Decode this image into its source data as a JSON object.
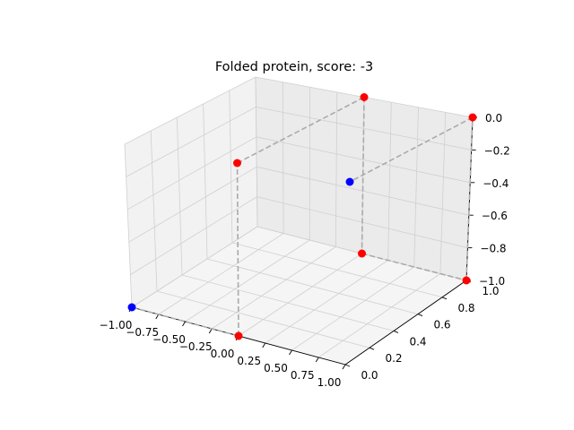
{
  "chart_data": {
    "type": "scatter",
    "projection": "3d",
    "title": "Folded protein, score: -3",
    "xlabel": "",
    "ylabel": "",
    "zlabel": "",
    "xlim": [
      -1.0,
      1.0
    ],
    "ylim": [
      0.0,
      1.0
    ],
    "zlim": [
      -1.0,
      0.0
    ],
    "x_ticks": [
      "−1.00",
      "−0.75",
      "−0.50",
      "−0.25",
      "0.00",
      "0.25",
      "0.50",
      "0.75",
      "1.00"
    ],
    "y_ticks": [
      "0.0",
      "0.2",
      "0.4",
      "0.6",
      "0.8",
      "1.0"
    ],
    "z_ticks": [
      "0.0",
      "−0.2",
      "−0.4",
      "−0.6",
      "−0.8",
      "−1.0"
    ],
    "grid": true,
    "connector_style": "dashed",
    "colors": {
      "hydrophobic": "#0000ff",
      "polar": "#ff0000",
      "connector": "#aaaaaa",
      "pane_left": "#f2f2f2",
      "pane_right": "#ebebeb",
      "pane_floor": "#f5f5f5",
      "grid": "#d0d0d0"
    },
    "points": [
      {
        "x": -1,
        "y": 0,
        "z": -1,
        "color": "#0000ff"
      },
      {
        "x": 0,
        "y": 0,
        "z": -1,
        "color": "#ff0000"
      },
      {
        "x": 0,
        "y": 0,
        "z": 0,
        "color": "#ff0000"
      },
      {
        "x": 0,
        "y": 1,
        "z": 0,
        "color": "#ff0000"
      },
      {
        "x": 0,
        "y": 1,
        "z": -1,
        "color": "#ff0000"
      },
      {
        "x": 1,
        "y": 1,
        "z": -1,
        "color": "#ff0000"
      },
      {
        "x": 1,
        "y": 1,
        "z": 0,
        "color": "#ff0000"
      },
      {
        "x": 1,
        "y": 0,
        "z": 0,
        "color": "#0000ff"
      }
    ]
  }
}
